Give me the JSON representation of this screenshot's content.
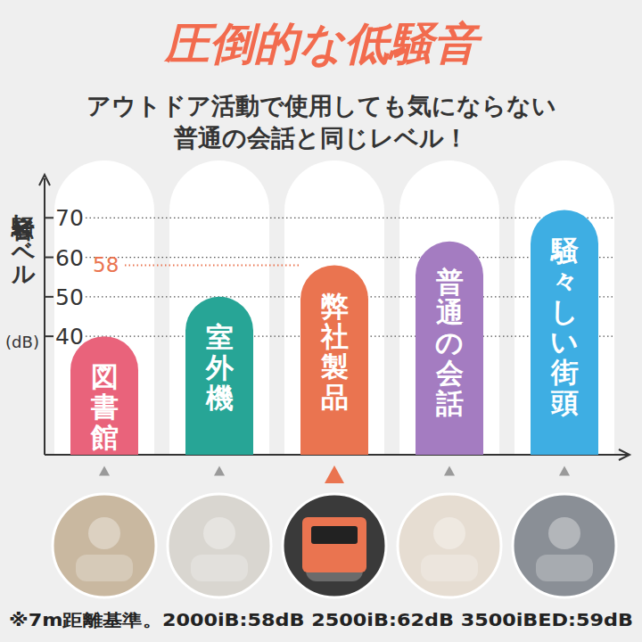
{
  "chart_data": {
    "type": "bar",
    "title": "圧倒的な低騒音",
    "subtitle": [
      "アウトドア活動で使用しても気にならない",
      "普通の会話と同じレベル！"
    ],
    "y_label": "騒音レベル(dB)",
    "categories": [
      "図書館",
      "室外機",
      "弊社製品",
      "普通の会話",
      "騒々しい街頭"
    ],
    "values": [
      40,
      50,
      58,
      64,
      72
    ],
    "colors": [
      "#e9637b",
      "#27a596",
      "#ea7450",
      "#a47cc1",
      "#3eaee3"
    ],
    "ylim": [
      10,
      80
    ],
    "yticks": [
      40,
      50,
      60,
      70
    ],
    "grid": true,
    "reference_line": 58,
    "note": "※7m距離基準。2000iB:58dB 2500iB:62dB 3500iBED:59dB"
  }
}
